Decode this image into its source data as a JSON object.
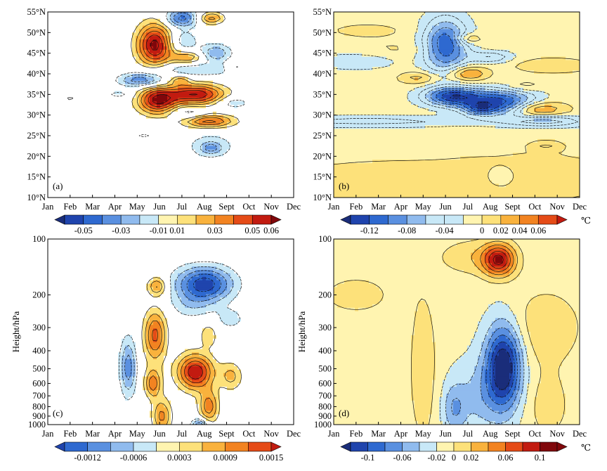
{
  "figure": {
    "unit_symbol": "℃"
  },
  "chart_data": [
    {
      "id": "a",
      "type": "contour",
      "panel_label": "(a)",
      "x_ticks": [
        "Jan",
        "Feb",
        "Mar",
        "Apr",
        "May",
        "Jun",
        "Jul",
        "Aug",
        "Sept",
        "Oct",
        "Nov",
        "Dec"
      ],
      "y_ticks": [
        "10°N",
        "15°N",
        "20°N",
        "25°N",
        "30°N",
        "35°N",
        "40°N",
        "45°N",
        "50°N",
        "55°N"
      ],
      "ylim": [
        10,
        55
      ],
      "colorbar": {
        "levels": [
          -0.06,
          -0.05,
          -0.04,
          -0.03,
          -0.02,
          -0.01,
          0.01,
          0.02,
          0.03,
          0.04,
          0.05,
          0.06
        ],
        "tick_labels": [
          "-0.05",
          "-0.03",
          "-0.01",
          "0.01",
          "0.03",
          "0.05",
          "0.06"
        ],
        "unit": ""
      },
      "features": [
        {
          "x": 5.8,
          "y": 47,
          "sx": 0.55,
          "sy": 3.5,
          "v": 0.065
        },
        {
          "x": 5.9,
          "y": 33.5,
          "sx": 0.6,
          "sy": 2.2,
          "v": 0.06
        },
        {
          "x": 7.6,
          "y": 35,
          "sx": 0.9,
          "sy": 1.7,
          "v": 0.06
        },
        {
          "x": 8.2,
          "y": 28.5,
          "sx": 0.8,
          "sy": 1.1,
          "v": 0.045
        },
        {
          "x": 7.3,
          "y": 44,
          "sx": 0.5,
          "sy": 1.0,
          "v": 0.03
        },
        {
          "x": 8.3,
          "y": 53.5,
          "sx": 0.4,
          "sy": 1.0,
          "v": 0.035
        },
        {
          "x": 9.4,
          "y": 41.5,
          "sx": 0.3,
          "sy": 1.0,
          "v": 0.02
        },
        {
          "x": 6.9,
          "y": 38.5,
          "sx": 0.3,
          "sy": 0.8,
          "v": 0.025
        },
        {
          "x": 2.0,
          "y": 33.8,
          "sx": 0.35,
          "sy": 0.6,
          "v": 0.013
        },
        {
          "x": 5.2,
          "y": 38.5,
          "sx": 0.7,
          "sy": 1.1,
          "v": -0.04
        },
        {
          "x": 7.7,
          "y": 41,
          "sx": 1.5,
          "sy": 1.1,
          "v": -0.02
        },
        {
          "x": 7.0,
          "y": 53.5,
          "sx": 0.5,
          "sy": 1.5,
          "v": -0.045
        },
        {
          "x": 8.5,
          "y": 45,
          "sx": 0.5,
          "sy": 1.5,
          "v": -0.03
        },
        {
          "x": 7.0,
          "y": 48,
          "sx": 0.5,
          "sy": 1.7,
          "v": -0.02
        },
        {
          "x": 4.2,
          "y": 35,
          "sx": 0.4,
          "sy": 0.7,
          "v": -0.015
        },
        {
          "x": 8.3,
          "y": 22.5,
          "sx": 0.9,
          "sy": 2.5,
          "v": -0.015
        },
        {
          "x": 8.3,
          "y": 22,
          "sx": 0.3,
          "sy": 0.9,
          "v": -0.025
        },
        {
          "x": 7.3,
          "y": 30.5,
          "sx": 0.5,
          "sy": 1.0,
          "v": -0.02
        },
        {
          "x": 9.3,
          "y": 33,
          "sx": 0.5,
          "sy": 1.0,
          "v": -0.02
        },
        {
          "x": 5.3,
          "y": 25,
          "sx": 0.3,
          "sy": 0.5,
          "v": -0.013
        }
      ]
    },
    {
      "id": "b",
      "type": "contour",
      "panel_label": "(b)",
      "x_ticks": [
        "Jan",
        "Feb",
        "Mar",
        "Apr",
        "May",
        "Jun",
        "Jul",
        "Aug",
        "Sept",
        "Oct",
        "Nov",
        "Dec"
      ],
      "y_ticks": [
        "10°N",
        "15°N",
        "20°N",
        "25°N",
        "30°N",
        "35°N",
        "40°N",
        "45°N",
        "50°N",
        "55°N"
      ],
      "ylim": [
        10,
        55
      ],
      "colorbar": {
        "levels": [
          -0.14,
          -0.12,
          -0.1,
          -0.08,
          -0.06,
          -0.04,
          -0.02,
          0,
          0.02,
          0.04,
          0.06,
          0.08
        ],
        "tick_labels": [
          "-0.12",
          "-0.08",
          "-0.04",
          "0",
          "0.02",
          "0.04",
          "0.06"
        ],
        "unit": "℃"
      },
      "background": -0.01,
      "features": [
        {
          "x": 6.0,
          "y": 47,
          "sx": 0.7,
          "sy": 4.5,
          "v": -0.11
        },
        {
          "x": 6.3,
          "y": 34.5,
          "sx": 0.9,
          "sy": 1.6,
          "v": -0.12
        },
        {
          "x": 8.5,
          "y": 33,
          "sx": 1.1,
          "sy": 2.2,
          "v": -0.12
        },
        {
          "x": 7.5,
          "y": 31.5,
          "sx": 0.5,
          "sy": 1.0,
          "v": -0.06
        },
        {
          "x": 2.5,
          "y": 28.5,
          "sx": 3.5,
          "sy": 0.9,
          "v": -0.04
        },
        {
          "x": 10.5,
          "y": 28.5,
          "sx": 1.2,
          "sy": 0.9,
          "v": -0.06
        },
        {
          "x": 2.0,
          "y": 43,
          "sx": 1.2,
          "sy": 1.3,
          "v": -0.03
        },
        {
          "x": 8.0,
          "y": 44,
          "sx": 0.7,
          "sy": 1.0,
          "v": -0.05
        },
        {
          "x": 7.0,
          "y": 40,
          "sx": 0.6,
          "sy": 1.2,
          "v": 0.06
        },
        {
          "x": 7.0,
          "y": 48.5,
          "sx": 0.4,
          "sy": 0.9,
          "v": 0.05
        },
        {
          "x": 10.0,
          "y": 31.5,
          "sx": 0.9,
          "sy": 1.3,
          "v": 0.07
        },
        {
          "x": 4.8,
          "y": 39,
          "sx": 0.6,
          "sy": 1.0,
          "v": 0.04
        },
        {
          "x": 10.8,
          "y": 42,
          "sx": 1.2,
          "sy": 1.2,
          "v": 0.03
        },
        {
          "x": 2.5,
          "y": 50.5,
          "sx": 1.5,
          "sy": 1.5,
          "v": 0.015
        },
        {
          "x": 3.5,
          "y": 14,
          "sx": 3.5,
          "sy": 3.5,
          "v": 0.025
        },
        {
          "x": 10.0,
          "y": 15,
          "sx": 2.5,
          "sy": 4.0,
          "v": 0.025
        },
        {
          "x": 8.5,
          "y": 15,
          "sx": 0.6,
          "sy": 2.0,
          "v": -0.03
        },
        {
          "x": 10.5,
          "y": 22.5,
          "sx": 0.5,
          "sy": 0.8,
          "v": 0.03
        },
        {
          "x": 9.5,
          "y": 37,
          "sx": 0.6,
          "sy": 1.0,
          "v": 0.025
        },
        {
          "x": 4.0,
          "y": 46,
          "sx": 1.5,
          "sy": 1.5,
          "v": 0.012
        }
      ]
    },
    {
      "id": "c",
      "type": "contour",
      "panel_label": "(c)",
      "x_ticks": [
        "Jan",
        "Feb",
        "Mar",
        "Apr",
        "May",
        "Jun",
        "Jul",
        "Aug",
        "Sept",
        "Oct",
        "Nov",
        "Dec"
      ],
      "y_ticks": [
        "100",
        "200",
        "300",
        "400",
        "500",
        "600",
        "700",
        "800",
        "900",
        "1000"
      ],
      "ylabel": "Height/hPa",
      "ylim": [
        1000,
        100
      ],
      "colorbar": {
        "levels": [
          -0.0015,
          -0.0012,
          -0.0009,
          -0.0006,
          -0.0003,
          0.0003,
          0.0006,
          0.0009,
          0.0012,
          0.0015
        ],
        "tick_labels": [
          "-0.0012",
          "-0.0006",
          "0.0003",
          "0.0009",
          "0.0015"
        ],
        "unit": ""
      },
      "features": [
        {
          "x": 5.8,
          "y": 330,
          "sx": 0.35,
          "sy": 0.22,
          "v": 0.0013
        },
        {
          "x": 5.9,
          "y": 180,
          "sx": 0.3,
          "sy": 0.08,
          "v": 0.001
        },
        {
          "x": 5.7,
          "y": 600,
          "sx": 0.25,
          "sy": 0.12,
          "v": 0.0011
        },
        {
          "x": 6.1,
          "y": 900,
          "sx": 0.3,
          "sy": 0.15,
          "v": 0.001
        },
        {
          "x": 7.6,
          "y": 520,
          "sx": 0.55,
          "sy": 0.15,
          "v": 0.0018
        },
        {
          "x": 8.2,
          "y": 330,
          "sx": 0.25,
          "sy": 0.1,
          "v": 0.0006
        },
        {
          "x": 8.2,
          "y": 800,
          "sx": 0.3,
          "sy": 0.14,
          "v": 0.0011
        },
        {
          "x": 9.2,
          "y": 550,
          "sx": 0.35,
          "sy": 0.12,
          "v": 0.0007
        },
        {
          "x": 8.0,
          "y": 175,
          "sx": 0.9,
          "sy": 0.15,
          "v": -0.0017
        },
        {
          "x": 7.4,
          "y": 230,
          "sx": 0.7,
          "sy": 0.12,
          "v": -0.0004
        },
        {
          "x": 4.6,
          "y": 490,
          "sx": 0.25,
          "sy": 0.25,
          "v": -0.0011
        },
        {
          "x": 7.8,
          "y": 1000,
          "sx": 0.25,
          "sy": 0.05,
          "v": -0.0013
        },
        {
          "x": 9.2,
          "y": 270,
          "sx": 0.5,
          "sy": 0.1,
          "v": -0.0004
        }
      ]
    },
    {
      "id": "d",
      "type": "contour",
      "panel_label": "(d)",
      "x_ticks": [
        "Jan",
        "Feb",
        "Mar",
        "Apr",
        "May",
        "Jun",
        "Jul",
        "Aug",
        "Sept",
        "Oct",
        "Nov",
        "Dec"
      ],
      "y_ticks": [
        "100",
        "200",
        "300",
        "400",
        "500",
        "600",
        "700",
        "800",
        "900",
        "1000"
      ],
      "ylabel": "Height/hPa",
      "ylim": [
        1000,
        100
      ],
      "colorbar": {
        "levels": [
          -0.12,
          -0.1,
          -0.08,
          -0.06,
          -0.04,
          -0.02,
          0,
          0.02,
          0.04,
          0.06,
          0.08,
          0.1,
          0.12
        ],
        "tick_labels": [
          "-0.1",
          "-0.06",
          "-0.02",
          "0",
          "0.02",
          "0.06",
          "0.1"
        ],
        "unit": "℃"
      },
      "background": -0.015,
      "features": [
        {
          "x": 8.4,
          "y": 130,
          "sx": 0.5,
          "sy": 0.14,
          "v": 0.11
        },
        {
          "x": 7.2,
          "y": 125,
          "sx": 1.1,
          "sy": 0.16,
          "v": 0.03
        },
        {
          "x": 8.6,
          "y": 480,
          "sx": 0.55,
          "sy": 0.35,
          "v": -0.13
        },
        {
          "x": 7.6,
          "y": 700,
          "sx": 0.9,
          "sy": 0.3,
          "v": -0.03
        },
        {
          "x": 6.4,
          "y": 820,
          "sx": 0.35,
          "sy": 0.2,
          "v": -0.04
        },
        {
          "x": 2.0,
          "y": 200,
          "sx": 1.2,
          "sy": 0.18,
          "v": 0.025
        },
        {
          "x": 5.0,
          "y": 500,
          "sx": 0.45,
          "sy": 0.7,
          "v": 0.03
        },
        {
          "x": 10.5,
          "y": 300,
          "sx": 1.2,
          "sy": 0.35,
          "v": 0.03
        },
        {
          "x": 10.6,
          "y": 800,
          "sx": 0.7,
          "sy": 0.3,
          "v": 0.025
        },
        {
          "x": 2.3,
          "y": 700,
          "sx": 0.15,
          "sy": 0.04,
          "v": 0.015
        }
      ]
    }
  ]
}
